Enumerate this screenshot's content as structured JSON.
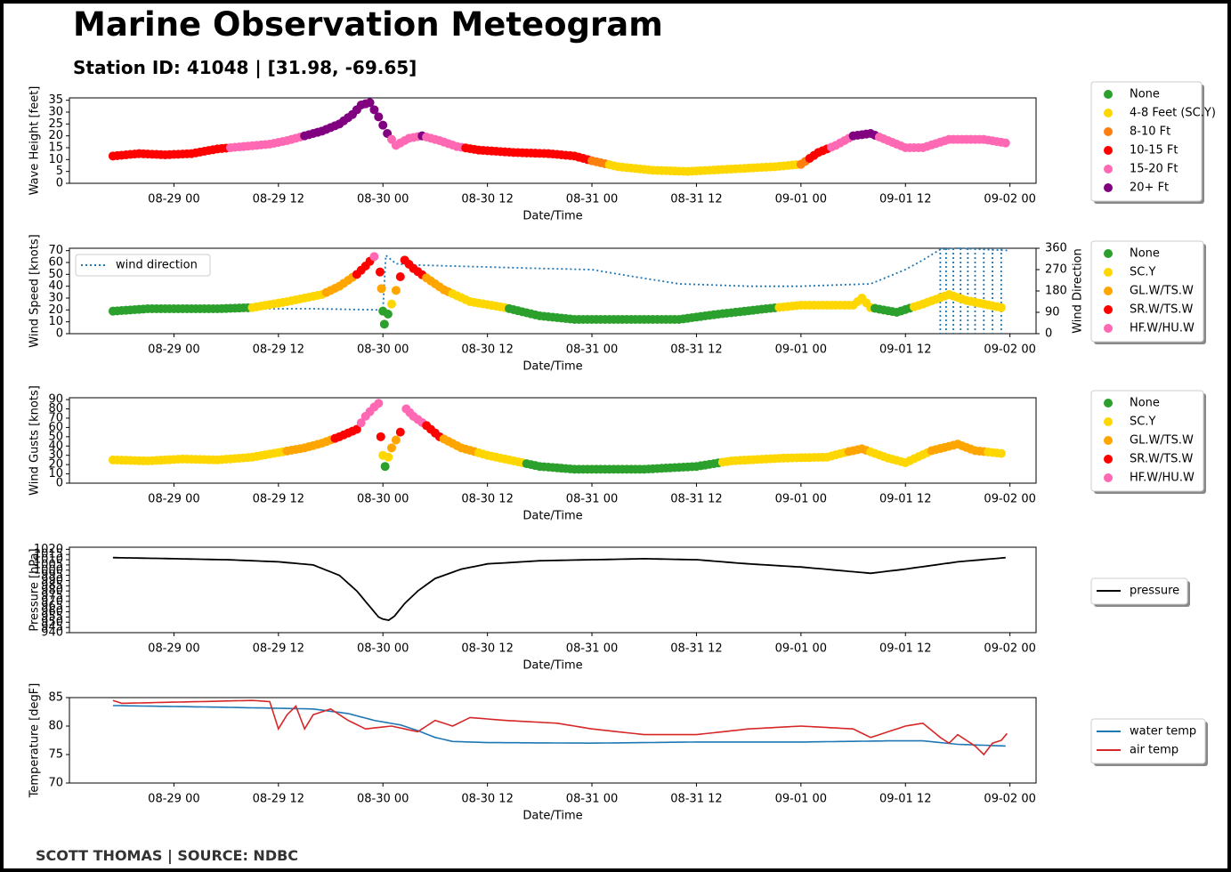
{
  "title": "Marine Observation Meteogram",
  "subtitle": "Station ID: 41048 | [31.98, -69.65]",
  "credit": "SCOTT THOMAS | SOURCE: NDBC",
  "colors": {
    "none": "#2ca02c",
    "yellow": "#ffd700",
    "orange_sc": "#ff7f0e",
    "orange_gl": "#ffa500",
    "red": "#ff0000",
    "pink": "#ff69b4",
    "purple": "#800080",
    "blue": "#1f77b4",
    "airred": "#d62728",
    "black": "#000000"
  },
  "x_axis": {
    "label": "Date/Time",
    "range": [
      "2023-08-28 12:00",
      "2023-09-02 03:00"
    ],
    "ticks": [
      "08-29 00",
      "08-29 12",
      "08-30 00",
      "08-30 12",
      "08-31 00",
      "08-31 12",
      "09-01 00",
      "09-01 12",
      "09-02 00"
    ]
  },
  "chart_data": [
    {
      "type": "scatter",
      "id": "wave",
      "ylabel": "Wave Height [feet]",
      "ylim": [
        0,
        36
      ],
      "yticks": [
        0,
        5,
        10,
        15,
        20,
        25,
        30,
        35
      ],
      "legend": [
        "None",
        "4-8 Feet (SC.Y)",
        "8-10 Ft",
        "10-15 Ft",
        "15-20 Ft",
        "20+ Ft"
      ],
      "points": [
        [
          "08-28 17:00",
          11.5
        ],
        [
          "08-28 20:00",
          12.5
        ],
        [
          "08-28 23:00",
          12
        ],
        [
          "08-29 02:00",
          12.5
        ],
        [
          "08-29 05:00",
          14.5
        ],
        [
          "08-29 08:00",
          15.5
        ],
        [
          "08-29 11:00",
          16.5
        ],
        [
          "08-29 13:00",
          18
        ],
        [
          "08-29 15:00",
          20
        ],
        [
          "08-29 17:00",
          22
        ],
        [
          "08-29 19:00",
          25
        ],
        [
          "08-29 20:30",
          29
        ],
        [
          "08-29 21:30",
          33
        ],
        [
          "08-29 22:30",
          34
        ],
        [
          "08-29 23:30",
          28
        ],
        [
          "08-30 00:30",
          21
        ],
        [
          "08-30 01:30",
          16
        ],
        [
          "08-30 03:00",
          19
        ],
        [
          "08-30 04:30",
          20
        ],
        [
          "08-30 06:30",
          18
        ],
        [
          "08-30 08:30",
          15.5
        ],
        [
          "08-30 11:00",
          14
        ],
        [
          "08-30 15:00",
          13
        ],
        [
          "08-30 19:00",
          12.5
        ],
        [
          "08-30 22:00",
          11.5
        ],
        [
          "08-31 00:00",
          9.5
        ],
        [
          "08-31 03:00",
          7
        ],
        [
          "08-31 07:00",
          5.5
        ],
        [
          "08-31 11:00",
          5
        ],
        [
          "08-31 16:00",
          6
        ],
        [
          "08-31 21:00",
          7
        ],
        [
          "09-01 00:00",
          8
        ],
        [
          "09-01 02:00",
          13
        ],
        [
          "09-01 04:00",
          16
        ],
        [
          "09-01 06:00",
          20
        ],
        [
          "09-01 08:00",
          21
        ],
        [
          "09-01 10:00",
          18
        ],
        [
          "09-01 12:00",
          15
        ],
        [
          "09-01 14:00",
          15
        ],
        [
          "09-01 17:00",
          18.5
        ],
        [
          "09-01 21:00",
          18.5
        ],
        [
          "09-01 23:30",
          17
        ]
      ]
    },
    {
      "type": "scatter",
      "id": "wind",
      "ylabel": "Wind Speed [knots]",
      "ylabel2": "Wind Direction",
      "ylim": [
        0,
        72
      ],
      "yticks": [
        0,
        10,
        20,
        30,
        40,
        50,
        60,
        70
      ],
      "y2lim": [
        0,
        360
      ],
      "y2ticks": [
        0,
        90,
        180,
        270,
        360
      ],
      "legend": [
        "None",
        "SC.Y",
        "GL.W/TS.W",
        "SR.W/TS.W",
        "HF.W/HU.W"
      ],
      "line_legend": "wind direction",
      "points": [
        [
          "08-28 17:00",
          19
        ],
        [
          "08-28 21:00",
          21
        ],
        [
          "08-29 01:00",
          21
        ],
        [
          "08-29 05:00",
          21
        ],
        [
          "08-29 09:00",
          22
        ],
        [
          "08-29 13:00",
          27
        ],
        [
          "08-29 17:00",
          33
        ],
        [
          "08-29 19:00",
          40
        ],
        [
          "08-29 21:00",
          50
        ],
        [
          "08-29 22:00",
          57
        ],
        [
          "08-29 23:00",
          65
        ],
        [
          "08-29 23:40",
          52
        ],
        [
          "08-29 23:50",
          38
        ],
        [
          "08-30 00:00",
          19
        ],
        [
          "08-30 00:10",
          8
        ],
        [
          "08-30 01:00",
          25
        ],
        [
          "08-30 02:00",
          48
        ],
        [
          "08-30 02:30",
          62
        ],
        [
          "08-30 03:30",
          55
        ],
        [
          "08-30 05:00",
          47
        ],
        [
          "08-30 07:00",
          37
        ],
        [
          "08-30 10:00",
          27
        ],
        [
          "08-30 14:00",
          22
        ],
        [
          "08-30 18:00",
          15
        ],
        [
          "08-30 22:00",
          12
        ],
        [
          "08-31 04:00",
          12
        ],
        [
          "08-31 10:00",
          12
        ],
        [
          "08-31 14:00",
          16
        ],
        [
          "08-31 20:00",
          21
        ],
        [
          "09-01 00:00",
          24
        ],
        [
          "09-01 06:00",
          24
        ],
        [
          "09-01 07:00",
          30
        ],
        [
          "09-01 08:00",
          22
        ],
        [
          "09-01 11:00",
          18
        ],
        [
          "09-01 14:00",
          25
        ],
        [
          "09-01 17:00",
          33
        ],
        [
          "09-01 19:00",
          28
        ],
        [
          "09-01 23:00",
          22
        ]
      ],
      "direction": [
        [
          "08-28 17:00",
          100
        ],
        [
          "08-29 04:00",
          105
        ],
        [
          "08-29 16:00",
          105
        ],
        [
          "08-30 00:00",
          100
        ],
        [
          "08-30 00:20",
          330
        ],
        [
          "08-30 01:30",
          295
        ],
        [
          "08-30 03:00",
          290
        ],
        [
          "08-30 08:00",
          285
        ],
        [
          "08-30 18:00",
          275
        ],
        [
          "08-31 00:00",
          270
        ],
        [
          "08-31 04:00",
          245
        ],
        [
          "08-31 10:00",
          210
        ],
        [
          "08-31 18:00",
          200
        ],
        [
          "09-01 00:00",
          200
        ],
        [
          "09-01 08:00",
          210
        ],
        [
          "09-01 12:00",
          270
        ],
        [
          "09-01 14:00",
          310
        ],
        [
          "09-01 16:00",
          355
        ],
        [
          "09-01 18:00",
          360
        ],
        [
          "09-02 00:00",
          350
        ]
      ]
    },
    {
      "type": "scatter",
      "id": "gust",
      "ylabel": "Wind Gusts [knots]",
      "ylim": [
        0,
        92
      ],
      "yticks": [
        0,
        10,
        20,
        30,
        40,
        50,
        60,
        70,
        80,
        90
      ],
      "legend": [
        "None",
        "SC.Y",
        "GL.W/TS.W",
        "SR.W/TS.W",
        "HF.W/HU.W"
      ],
      "points": [
        [
          "08-28 17:00",
          25
        ],
        [
          "08-28 21:00",
          24
        ],
        [
          "08-29 01:00",
          26
        ],
        [
          "08-29 05:00",
          25
        ],
        [
          "08-29 09:00",
          28
        ],
        [
          "08-29 12:00",
          33
        ],
        [
          "08-29 15:00",
          38
        ],
        [
          "08-29 17:00",
          43
        ],
        [
          "08-29 19:00",
          50
        ],
        [
          "08-29 21:00",
          58
        ],
        [
          "08-29 22:00",
          72
        ],
        [
          "08-29 23:00",
          82
        ],
        [
          "08-29 23:30",
          86
        ],
        [
          "08-29 23:45",
          50
        ],
        [
          "08-30 00:00",
          30
        ],
        [
          "08-30 00:15",
          18
        ],
        [
          "08-30 01:00",
          38
        ],
        [
          "08-30 02:00",
          55
        ],
        [
          "08-30 02:40",
          80
        ],
        [
          "08-30 03:30",
          72
        ],
        [
          "08-30 05:00",
          62
        ],
        [
          "08-30 06:30",
          50
        ],
        [
          "08-30 09:00",
          38
        ],
        [
          "08-30 12:00",
          30
        ],
        [
          "08-30 15:00",
          24
        ],
        [
          "08-30 18:00",
          18
        ],
        [
          "08-30 22:00",
          15
        ],
        [
          "08-31 06:00",
          15
        ],
        [
          "08-31 12:00",
          18
        ],
        [
          "08-31 16:00",
          24
        ],
        [
          "08-31 22:00",
          27
        ],
        [
          "09-01 03:00",
          28
        ],
        [
          "09-01 05:00",
          33
        ],
        [
          "09-01 07:00",
          37
        ],
        [
          "09-01 10:00",
          27
        ],
        [
          "09-01 12:00",
          22
        ],
        [
          "09-01 15:00",
          35
        ],
        [
          "09-01 18:00",
          42
        ],
        [
          "09-01 20:00",
          35
        ],
        [
          "09-01 23:00",
          32
        ]
      ]
    },
    {
      "type": "line",
      "id": "pressure",
      "ylabel": "Pressure [hPa]",
      "ylim": [
        940,
        1022
      ],
      "yticks": [
        940,
        945,
        950,
        955,
        960,
        965,
        970,
        975,
        980,
        985,
        990,
        995,
        1000,
        1005,
        1010,
        1015,
        1020
      ],
      "series": [
        {
          "name": "pressure",
          "values": [
            [
              "08-28 17:00",
              1012
            ],
            [
              "08-29 00:00",
              1011
            ],
            [
              "08-29 06:00",
              1010
            ],
            [
              "08-29 12:00",
              1008
            ],
            [
              "08-29 16:00",
              1005
            ],
            [
              "08-29 19:00",
              995
            ],
            [
              "08-29 21:00",
              980
            ],
            [
              "08-29 22:30",
              965
            ],
            [
              "08-29 23:30",
              955
            ],
            [
              "08-30 00:00",
              953
            ],
            [
              "08-30 00:40",
              952
            ],
            [
              "08-30 01:20",
              956
            ],
            [
              "08-30 02:30",
              968
            ],
            [
              "08-30 04:00",
              980
            ],
            [
              "08-30 06:00",
              992
            ],
            [
              "08-30 09:00",
              1001
            ],
            [
              "08-30 12:00",
              1006
            ],
            [
              "08-30 18:00",
              1009
            ],
            [
              "08-31 00:00",
              1010
            ],
            [
              "08-31 06:00",
              1011
            ],
            [
              "08-31 12:00",
              1010
            ],
            [
              "08-31 18:00",
              1006
            ],
            [
              "09-01 00:00",
              1003
            ],
            [
              "09-01 04:00",
              1000
            ],
            [
              "09-01 08:00",
              997
            ],
            [
              "09-01 12:00",
              1001
            ],
            [
              "09-01 18:00",
              1008
            ],
            [
              "09-01 23:30",
              1012
            ]
          ]
        }
      ]
    },
    {
      "type": "line",
      "id": "temp",
      "ylabel": "Temperature [degF]",
      "ylim": [
        70,
        85
      ],
      "yticks": [
        70,
        75,
        80,
        85
      ],
      "series": [
        {
          "name": "water temp",
          "values": [
            [
              "08-28 17:00",
              83.6
            ],
            [
              "08-29 06:00",
              83.3
            ],
            [
              "08-29 16:00",
              83.0
            ],
            [
              "08-29 20:00",
              82.2
            ],
            [
              "08-29 23:00",
              81
            ],
            [
              "08-30 02:00",
              80.2
            ],
            [
              "08-30 04:00",
              79.2
            ],
            [
              "08-30 06:00",
              78
            ],
            [
              "08-30 08:00",
              77.3
            ],
            [
              "08-30 12:00",
              77.1
            ],
            [
              "08-31 00:00",
              77
            ],
            [
              "08-31 12:00",
              77.2
            ],
            [
              "09-01 00:00",
              77.2
            ],
            [
              "09-01 10:00",
              77.4
            ],
            [
              "09-01 14:00",
              77.4
            ],
            [
              "09-01 18:00",
              76.8
            ],
            [
              "09-01 23:30",
              76.5
            ]
          ]
        },
        {
          "name": "air temp",
          "values": [
            [
              "08-28 17:00",
              84.5
            ],
            [
              "08-28 18:00",
              84
            ],
            [
              "08-29 00:00",
              84.2
            ],
            [
              "08-29 09:00",
              84.5
            ],
            [
              "08-29 11:00",
              84.3
            ],
            [
              "08-29 12:00",
              79.5
            ],
            [
              "08-29 13:00",
              82
            ],
            [
              "08-29 14:00",
              83.5
            ],
            [
              "08-29 15:00",
              79.5
            ],
            [
              "08-29 16:00",
              82
            ],
            [
              "08-29 18:00",
              83
            ],
            [
              "08-29 20:00",
              81
            ],
            [
              "08-29 22:00",
              79.5
            ],
            [
              "08-30 01:00",
              80
            ],
            [
              "08-30 04:00",
              79
            ],
            [
              "08-30 06:00",
              81
            ],
            [
              "08-30 08:00",
              80
            ],
            [
              "08-30 10:00",
              81.5
            ],
            [
              "08-30 14:00",
              81
            ],
            [
              "08-30 20:00",
              80.5
            ],
            [
              "08-31 00:00",
              79.5
            ],
            [
              "08-31 06:00",
              78.5
            ],
            [
              "08-31 12:00",
              78.5
            ],
            [
              "08-31 18:00",
              79.5
            ],
            [
              "09-01 00:00",
              80
            ],
            [
              "09-01 06:00",
              79.5
            ],
            [
              "09-01 08:00",
              78
            ],
            [
              "09-01 12:00",
              80
            ],
            [
              "09-01 14:00",
              80.5
            ],
            [
              "09-01 16:00",
              78
            ],
            [
              "09-01 17:00",
              77
            ],
            [
              "09-01 18:00",
              78.5
            ],
            [
              "09-01 20:00",
              76.5
            ],
            [
              "09-01 21:00",
              75
            ],
            [
              "09-01 22:00",
              77
            ],
            [
              "09-01 23:00",
              77.5
            ],
            [
              "09-01 23:40",
              78.7
            ]
          ]
        }
      ]
    }
  ]
}
